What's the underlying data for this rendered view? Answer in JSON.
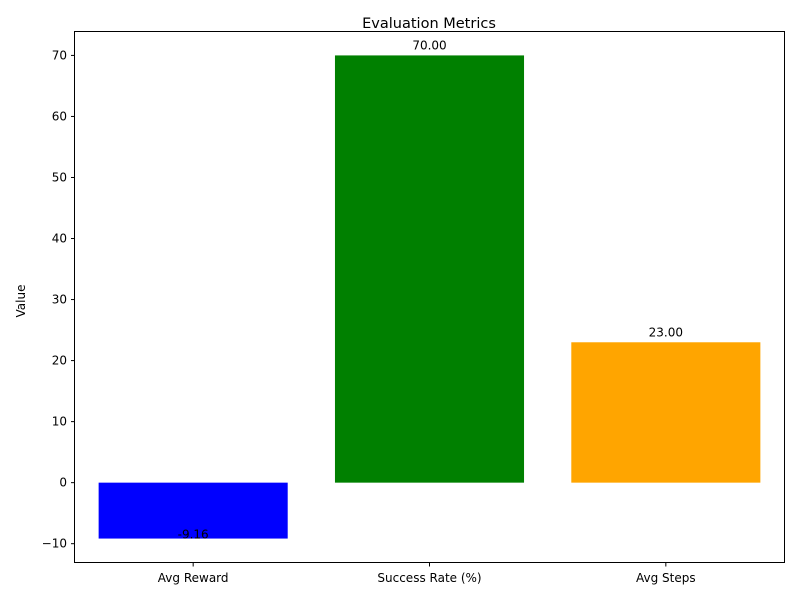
{
  "chart_data": {
    "type": "bar",
    "title": "Evaluation Metrics",
    "xlabel": "",
    "ylabel": "Value",
    "categories": [
      "Avg Reward",
      "Success Rate (%)",
      "Avg Steps"
    ],
    "values": [
      -9.16,
      70.0,
      23.0
    ],
    "data_labels": [
      "-9.16",
      "70.00",
      "23.00"
    ],
    "colors": [
      "#0000ff",
      "#008000",
      "#ffa500"
    ],
    "ylim": [
      -13,
      74
    ],
    "yticks": [
      -10,
      0,
      10,
      20,
      30,
      40,
      50,
      60,
      70
    ],
    "grid": false,
    "legend": "none"
  }
}
